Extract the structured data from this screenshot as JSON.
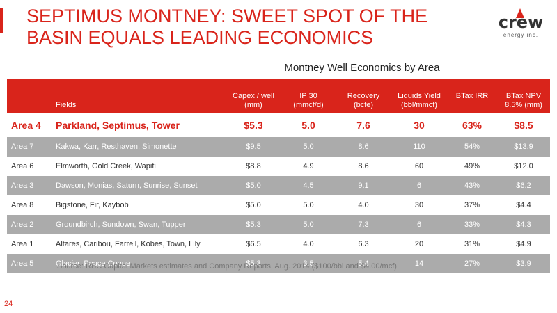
{
  "slide": {
    "title_line1": "SEPTIMUS MONTNEY:  SWEET SPOT OF THE",
    "title_line2": "BASIN EQUALS LEADING ECONOMICS",
    "page_number": "24",
    "accent_color": "#d9241b"
  },
  "logo": {
    "word": "crew",
    "tagline": "energy inc."
  },
  "table": {
    "title": "Montney Well Economics by Area",
    "headers": {
      "area": "",
      "fields": "Fields",
      "capex_l1": "Capex / well",
      "capex_l2": "(mm)",
      "ip30_l1": "IP 30",
      "ip30_l2": "(mmcf/d)",
      "recovery_l1": "Recovery",
      "recovery_l2": "(bcfe)",
      "liquids_l1": "Liquids Yield",
      "liquids_l2": "(bbl/mmcf)",
      "irr_l1": "BTax IRR",
      "npv_l1": "BTax NPV",
      "npv_l2": "8.5% (mm)"
    },
    "rows": [
      {
        "area": "Area 4",
        "fields": "Parkland, Septimus, Tower",
        "capex": "$5.3",
        "ip30": "5.0",
        "recovery": "7.6",
        "liquids": "30",
        "irr": "63%",
        "npv": "$8.5"
      },
      {
        "area": "Area 7",
        "fields": "Kakwa, Karr, Resthaven, Simonette",
        "capex": "$9.5",
        "ip30": "5.0",
        "recovery": "8.6",
        "liquids": "110",
        "irr": "54%",
        "npv": "$13.9"
      },
      {
        "area": "Area 6",
        "fields": "Elmworth, Gold Creek, Wapiti",
        "capex": "$8.8",
        "ip30": "4.9",
        "recovery": "8.6",
        "liquids": "60",
        "irr": "49%",
        "npv": "$12.0"
      },
      {
        "area": "Area 3",
        "fields": "Dawson, Monias, Saturn, Sunrise, Sunset",
        "capex": "$5.0",
        "ip30": "4.5",
        "recovery": "9.1",
        "liquids": "6",
        "irr": "43%",
        "npv": "$6.2"
      },
      {
        "area": "Area 8",
        "fields": "Bigstone, Fir, Kaybob",
        "capex": "$5.0",
        "ip30": "5.0",
        "recovery": "4.0",
        "liquids": "30",
        "irr": "37%",
        "npv": "$4.4"
      },
      {
        "area": "Area 2",
        "fields": "Groundbirch, Sundown, Swan, Tupper",
        "capex": "$5.3",
        "ip30": "5.0",
        "recovery": "7.3",
        "liquids": "6",
        "irr": "33%",
        "npv": "$4.3"
      },
      {
        "area": "Area 1",
        "fields": "Altares, Caribou, Farrell, Kobes, Town, Lily",
        "capex": "$6.5",
        "ip30": "4.0",
        "recovery": "6.3",
        "liquids": "20",
        "irr": "31%",
        "npv": "$4.9"
      },
      {
        "area": "Area 5",
        "fields": "Glacier, Pouce Coupe",
        "capex": "$5.3",
        "ip30": "3.5",
        "recovery": "5.4",
        "liquids": "14",
        "irr": "27%",
        "npv": "$3.9"
      }
    ],
    "source": "Source: RBC Capital Markets estimates and Company Reports, Aug. 2014 ($100/bbl and $4.00/mcf)"
  }
}
